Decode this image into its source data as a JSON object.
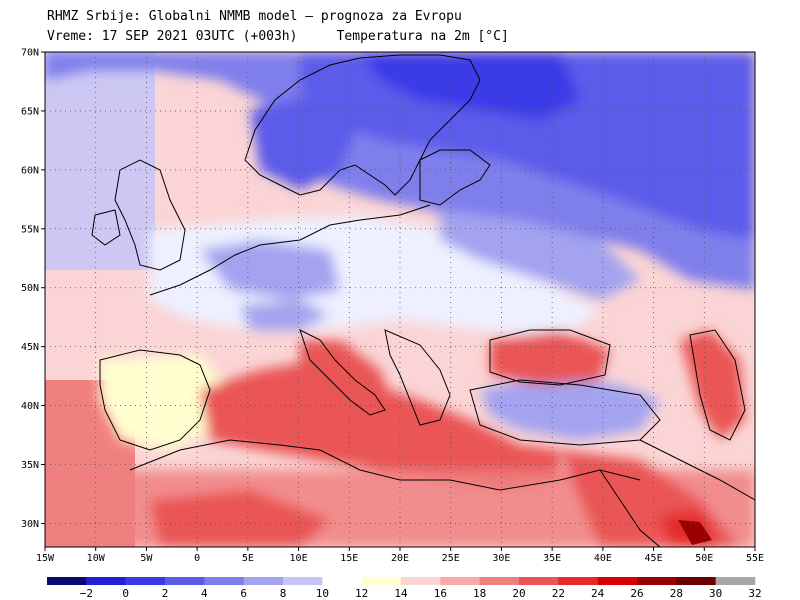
{
  "header": {
    "line1": "RHMZ Srbije: Globalni NMMB model — prognoza za Evropu",
    "line2_left": "Vreme: 17 SEP 2021 03UTC (+003h)",
    "line2_right": "Temperatura na 2m [°C]"
  },
  "map": {
    "lon_range": [
      -15,
      55
    ],
    "lat_range": [
      28,
      70
    ],
    "lat_ticks": [
      {
        "value": 70,
        "label": "70N"
      },
      {
        "value": 65,
        "label": "65N"
      },
      {
        "value": 60,
        "label": "60N"
      },
      {
        "value": 55,
        "label": "55N"
      },
      {
        "value": 50,
        "label": "50N"
      },
      {
        "value": 45,
        "label": "45N"
      },
      {
        "value": 40,
        "label": "40N"
      },
      {
        "value": 35,
        "label": "35N"
      },
      {
        "value": 30,
        "label": "30N"
      }
    ],
    "lon_ticks": [
      {
        "value": -15,
        "label": "15W"
      },
      {
        "value": -10,
        "label": "10W"
      },
      {
        "value": -5,
        "label": "5W"
      },
      {
        "value": 0,
        "label": "0"
      },
      {
        "value": 5,
        "label": "5E"
      },
      {
        "value": 10,
        "label": "10E"
      },
      {
        "value": 15,
        "label": "15E"
      },
      {
        "value": 20,
        "label": "20E"
      },
      {
        "value": 25,
        "label": "25E"
      },
      {
        "value": 30,
        "label": "30E"
      },
      {
        "value": 35,
        "label": "35E"
      },
      {
        "value": 40,
        "label": "40E"
      },
      {
        "value": 45,
        "label": "45E"
      },
      {
        "value": 50,
        "label": "50E"
      },
      {
        "value": 55,
        "label": "55E"
      }
    ],
    "gridlines": true
  },
  "colorbar": {
    "colors": [
      "#0a0a6e",
      "#1f1fd6",
      "#3a3ae8",
      "#5b5bea",
      "#7f7fec",
      "#a3a3f0",
      "#c6c6f6",
      "#ffffff",
      "#ffffd0",
      "#fbd5d5",
      "#f6aaaa",
      "#f08080",
      "#ea5555",
      "#e52a2a",
      "#d90000",
      "#9b0000",
      "#6b0000",
      "#a8a8a8"
    ],
    "labels": [
      "−2",
      "0",
      "2",
      "4",
      "6",
      "8",
      "10",
      "12",
      "14",
      "16",
      "18",
      "20",
      "22",
      "24",
      "26",
      "28",
      "30",
      "32"
    ]
  }
}
